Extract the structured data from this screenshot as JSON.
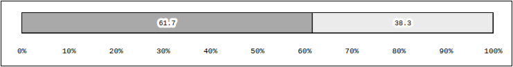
{
  "chart_data": {
    "type": "bar",
    "orientation": "horizontal",
    "stacked": true,
    "categories": [
      null
    ],
    "series": [
      {
        "color": "#a9a9a9",
        "values": [
          61.7
        ]
      },
      {
        "color": "#ebebeb",
        "values": [
          38.3
        ]
      }
    ],
    "xlim": [
      0,
      100
    ],
    "xticks": [
      {
        "value": 0,
        "label": "0%"
      },
      {
        "value": 10,
        "label": "10%"
      },
      {
        "value": 20,
        "label": "20%"
      },
      {
        "value": 30,
        "label": "30%"
      },
      {
        "value": 40,
        "label": "40%"
      },
      {
        "value": 50,
        "label": "50%"
      },
      {
        "value": 60,
        "label": "60%"
      },
      {
        "value": 70,
        "label": "70%"
      },
      {
        "value": 80,
        "label": "80%"
      },
      {
        "value": 90,
        "label": "90%"
      },
      {
        "value": 100,
        "label": "100%"
      }
    ],
    "data_labels": true,
    "tick_labels": "x",
    "grid": false
  }
}
